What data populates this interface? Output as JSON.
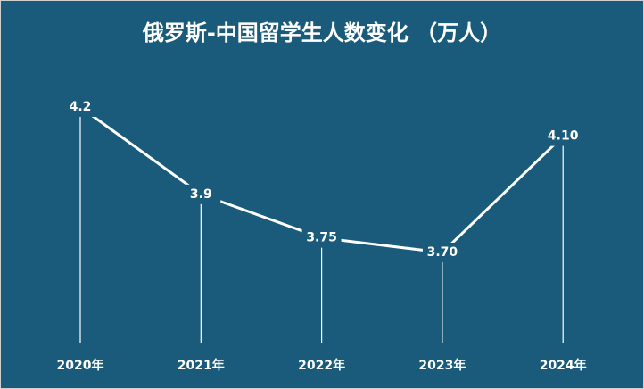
{
  "chart_data": {
    "type": "line",
    "title": "俄罗斯-中国留学生人数变化 （万人）",
    "categories": [
      "2020年",
      "2021年",
      "2022年",
      "2023年",
      "2024年"
    ],
    "values": [
      4.2,
      3.9,
      3.75,
      3.7,
      4.1
    ],
    "value_labels": [
      "4.2",
      "3.9",
      "3.75",
      "3.70",
      "4.10"
    ],
    "color": "#ffffff"
  }
}
